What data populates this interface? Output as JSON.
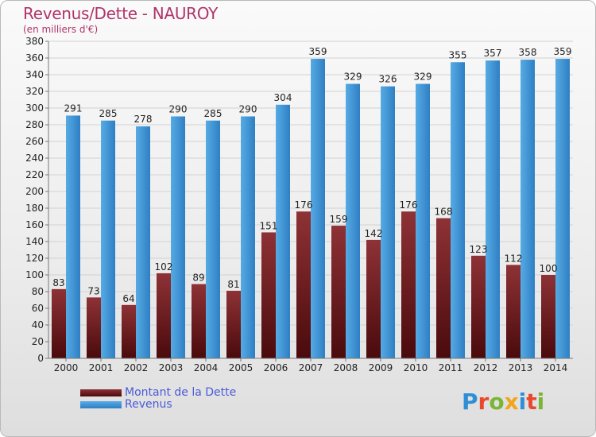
{
  "header": {
    "title": "Revenus/Dette - NAUROY",
    "subtitle": "(en milliers d'€)"
  },
  "legend": {
    "debt_label": "Montant de la Dette",
    "revenue_label": "Revenus"
  },
  "logo": {
    "text": "Proxiti",
    "letter_colors": [
      "#2f8fd6",
      "#e8492d",
      "#7ab536",
      "#f2a51c",
      "#2f8fd6",
      "#e8492d",
      "#7ab536"
    ]
  },
  "colors": {
    "debt_top": "#8e3236",
    "debt_bottom": "#4a0a0c",
    "revenue": "#56abe4",
    "revenue_dark": "#2f7fc4",
    "text": "#222222",
    "accent": "#b0356a"
  },
  "chart_data": {
    "type": "bar",
    "title": "Revenus/Dette - NAUROY",
    "ylabel": "(en milliers d'€)",
    "categories": [
      "2000",
      "2001",
      "2002",
      "2003",
      "2004",
      "2005",
      "2006",
      "2007",
      "2008",
      "2009",
      "2010",
      "2011",
      "2012",
      "2013",
      "2014"
    ],
    "series": [
      {
        "name": "Montant de la Dette",
        "values": [
          83,
          73,
          64,
          102,
          89,
          81,
          151,
          176,
          159,
          142,
          176,
          168,
          123,
          112,
          100
        ]
      },
      {
        "name": "Revenus",
        "values": [
          291,
          285,
          278,
          290,
          285,
          290,
          304,
          359,
          329,
          326,
          329,
          355,
          357,
          358,
          359
        ]
      }
    ],
    "ylim": [
      0,
      380
    ],
    "ytick_step": 20,
    "grid": true,
    "legend": "bottom-left"
  }
}
